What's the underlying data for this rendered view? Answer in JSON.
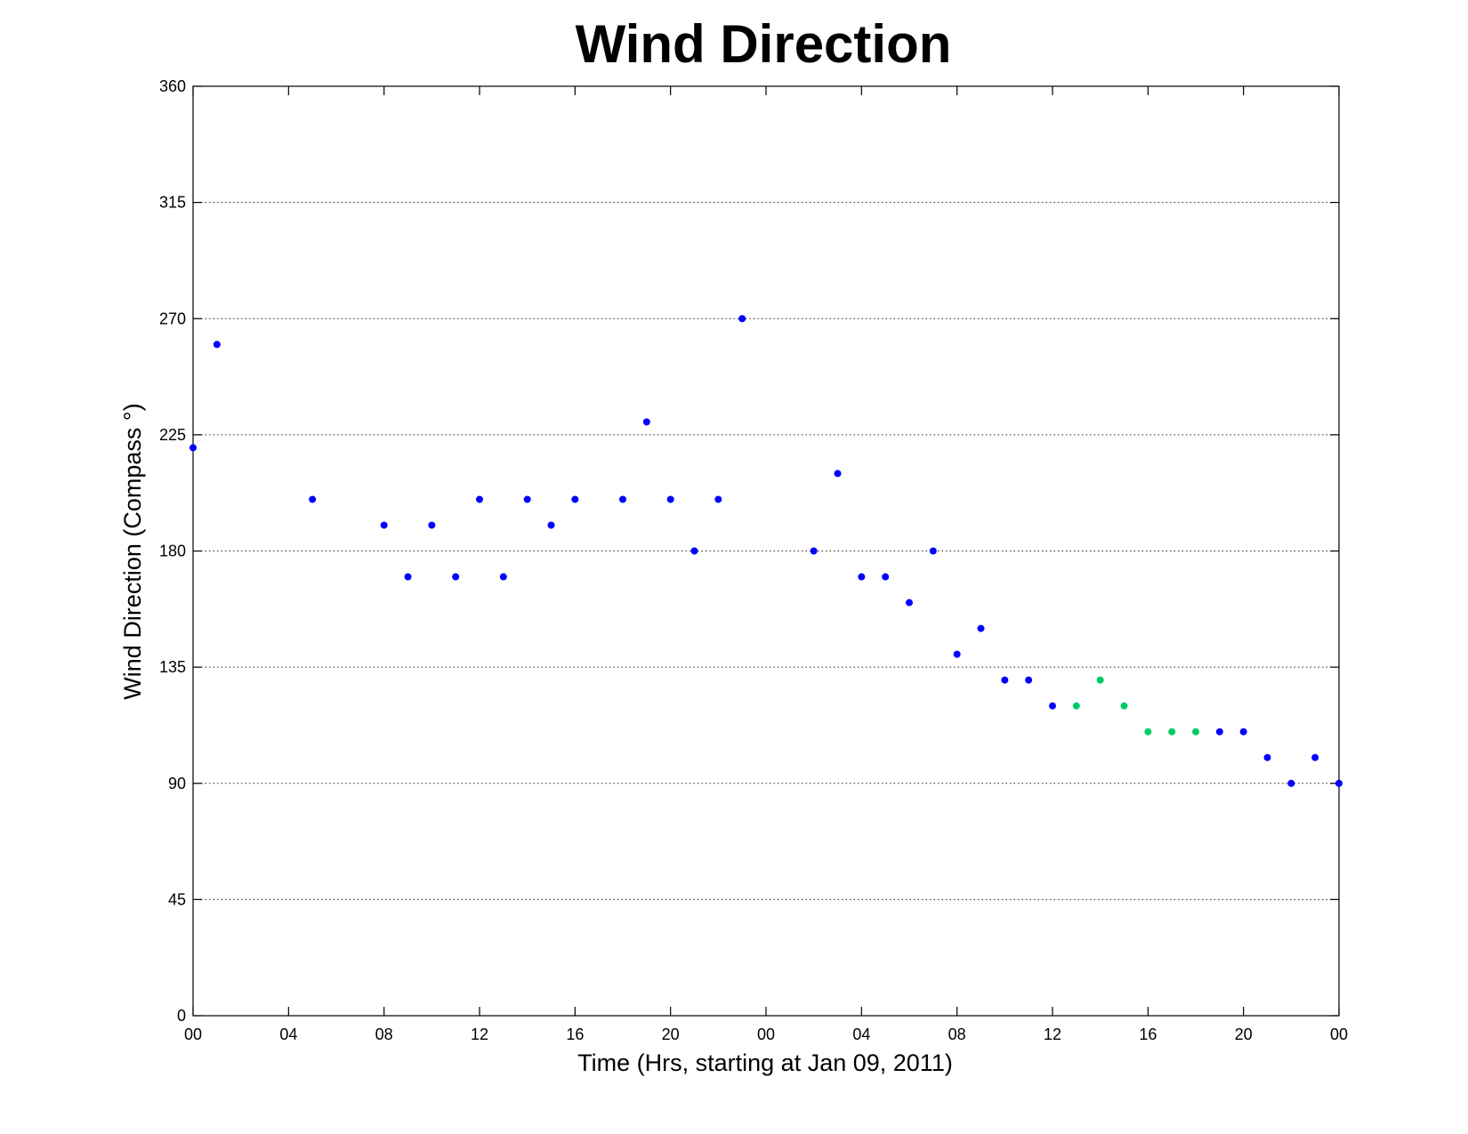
{
  "chart_data": {
    "type": "scatter",
    "title": "Wind Direction",
    "xlabel": "Time (Hrs, starting at Jan 09, 2011)",
    "ylabel": "Wind Direction (Compass  °)",
    "xlim": [
      0,
      48
    ],
    "ylim": [
      0,
      360
    ],
    "x_ticks": [
      0,
      4,
      8,
      12,
      16,
      20,
      24,
      28,
      32,
      36,
      40,
      44,
      48
    ],
    "x_tick_labels": [
      "00",
      "04",
      "08",
      "12",
      "16",
      "20",
      "00",
      "04",
      "08",
      "12",
      "16",
      "20",
      "00"
    ],
    "y_ticks": [
      0,
      45,
      90,
      135,
      180,
      225,
      270,
      315,
      360
    ],
    "y_tick_labels": [
      "0",
      "45",
      "90",
      "135",
      "180",
      "225",
      "270",
      "315",
      "360"
    ],
    "grid": "horizontal dotted",
    "colors": {
      "blue": "#0000ff",
      "green": "#00cc66"
    },
    "series": [
      {
        "color": "#0000ff",
        "points": [
          [
            0,
            220
          ],
          [
            1,
            260
          ],
          [
            5,
            200
          ],
          [
            8,
            190
          ],
          [
            9,
            170
          ],
          [
            10,
            190
          ],
          [
            11,
            170
          ],
          [
            12,
            200
          ],
          [
            13,
            170
          ],
          [
            14,
            200
          ],
          [
            15,
            190
          ],
          [
            16,
            200
          ],
          [
            18,
            200
          ],
          [
            19,
            230
          ],
          [
            20,
            200
          ],
          [
            21,
            180
          ],
          [
            22,
            200
          ],
          [
            23,
            270
          ],
          [
            26,
            180
          ],
          [
            27,
            210
          ],
          [
            28,
            170
          ],
          [
            29,
            170
          ],
          [
            30,
            160
          ],
          [
            31,
            180
          ],
          [
            32,
            140
          ],
          [
            33,
            150
          ],
          [
            34,
            130
          ],
          [
            35,
            130
          ],
          [
            36,
            120
          ],
          [
            43,
            110
          ],
          [
            44,
            110
          ],
          [
            45,
            100
          ],
          [
            46,
            90
          ],
          [
            47,
            100
          ],
          [
            48,
            90
          ]
        ]
      },
      {
        "color": "#00cc66",
        "points": [
          [
            37,
            120
          ],
          [
            38,
            130
          ],
          [
            39,
            120
          ],
          [
            40,
            110
          ],
          [
            41,
            110
          ],
          [
            42,
            110
          ]
        ]
      }
    ]
  }
}
